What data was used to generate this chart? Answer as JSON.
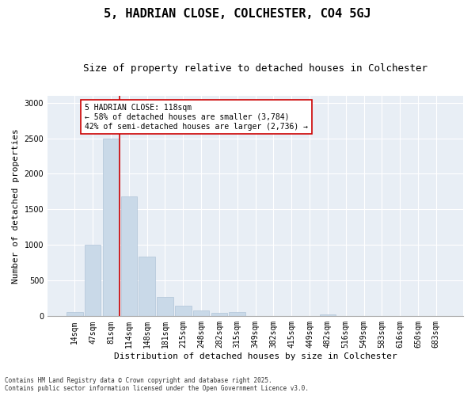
{
  "title": "5, HADRIAN CLOSE, COLCHESTER, CO4 5GJ",
  "subtitle": "Size of property relative to detached houses in Colchester",
  "xlabel": "Distribution of detached houses by size in Colchester",
  "ylabel": "Number of detached properties",
  "categories": [
    "14sqm",
    "47sqm",
    "81sqm",
    "114sqm",
    "148sqm",
    "181sqm",
    "215sqm",
    "248sqm",
    "282sqm",
    "315sqm",
    "349sqm",
    "382sqm",
    "415sqm",
    "449sqm",
    "482sqm",
    "516sqm",
    "549sqm",
    "583sqm",
    "616sqm",
    "650sqm",
    "683sqm"
  ],
  "values": [
    60,
    1000,
    2500,
    1680,
    840,
    270,
    150,
    80,
    50,
    55,
    0,
    0,
    0,
    0,
    30,
    0,
    0,
    0,
    0,
    0,
    0
  ],
  "bar_color": "#c9d9e8",
  "bar_edgecolor": "#b0c4d8",
  "vline_color": "#cc0000",
  "annotation_text": "5 HADRIAN CLOSE: 118sqm\n← 58% of detached houses are smaller (3,784)\n42% of semi-detached houses are larger (2,736) →",
  "annotation_box_facecolor": "#ffffff",
  "annotation_box_edgecolor": "#cc0000",
  "ylim": [
    0,
    3100
  ],
  "yticks": [
    0,
    500,
    1000,
    1500,
    2000,
    2500,
    3000
  ],
  "background_color": "#e8eef5",
  "grid_color": "#ffffff",
  "footnote1": "Contains HM Land Registry data © Crown copyright and database right 2025.",
  "footnote2": "Contains public sector information licensed under the Open Government Licence v3.0.",
  "title_fontsize": 11,
  "subtitle_fontsize": 9,
  "tick_fontsize": 7,
  "ylabel_fontsize": 8,
  "xlabel_fontsize": 8,
  "annotation_fontsize": 7,
  "footnote_fontsize": 5.5
}
